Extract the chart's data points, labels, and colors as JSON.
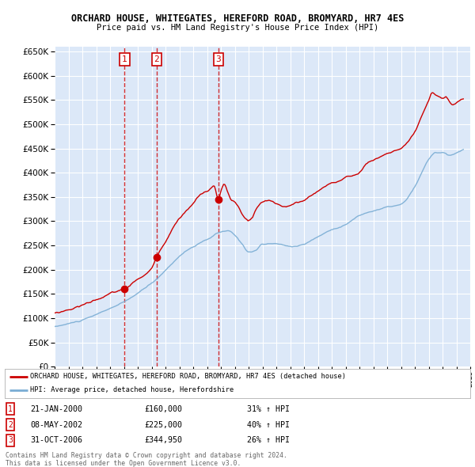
{
  "title": "ORCHARD HOUSE, WHITEGATES, HEREFORD ROAD, BROMYARD, HR7 4ES",
  "subtitle": "Price paid vs. HM Land Registry's House Price Index (HPI)",
  "ylim": [
    0,
    660000
  ],
  "yticks": [
    0,
    50000,
    100000,
    150000,
    200000,
    250000,
    300000,
    350000,
    400000,
    450000,
    500000,
    550000,
    600000,
    650000
  ],
  "bg_color": "#dce8f8",
  "grid_color": "#ffffff",
  "sale_color": "#cc0000",
  "hpi_color": "#7aadd4",
  "sale_label": "ORCHARD HOUSE, WHITEGATES, HEREFORD ROAD, BROMYARD, HR7 4ES (detached house)",
  "hpi_label": "HPI: Average price, detached house, Herefordshire",
  "transactions": [
    {
      "num": 1,
      "date": "21-JAN-2000",
      "price": 160000,
      "pct": "31% ↑ HPI",
      "year": 2000.05
    },
    {
      "num": 2,
      "date": "08-MAY-2002",
      "price": 225000,
      "pct": "40% ↑ HPI",
      "year": 2002.37
    },
    {
      "num": 3,
      "date": "31-OCT-2006",
      "price": 344950,
      "pct": "26% ↑ HPI",
      "year": 2006.83
    }
  ],
  "footer1": "Contains HM Land Registry data © Crown copyright and database right 2024.",
  "footer2": "This data is licensed under the Open Government Licence v3.0."
}
